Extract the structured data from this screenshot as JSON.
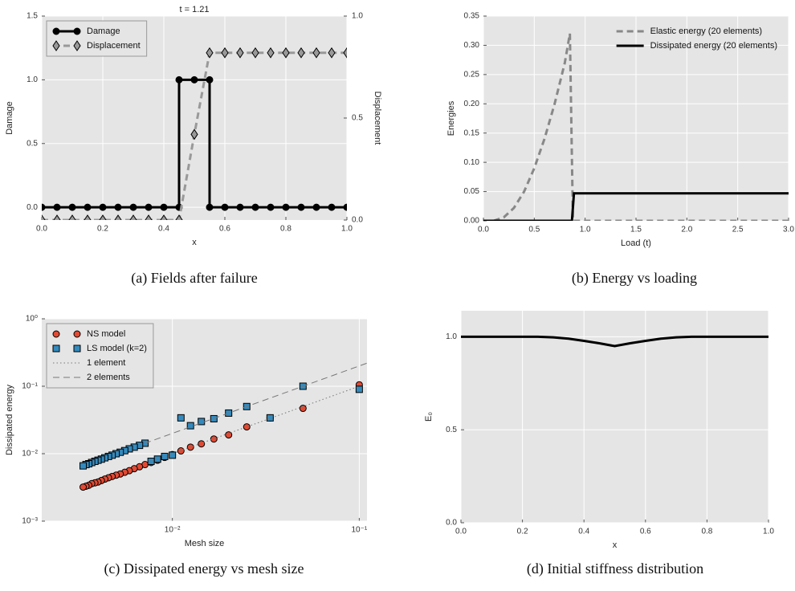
{
  "chart_data": [
    {
      "type": "line",
      "title": "t = 1.21",
      "caption": "(a) Fields after failure",
      "xlabel": "x",
      "ylabel": "Damage",
      "y2label": "Displacement",
      "xlim": [
        0,
        1
      ],
      "ylim": [
        -0.1,
        1.5
      ],
      "y2lim": [
        0,
        1
      ],
      "grid": true,
      "legend": "upper left",
      "legend_frame": true,
      "xticks": [
        {
          "value": 0,
          "label": "0.0"
        },
        {
          "value": 0.2,
          "label": "0.2"
        },
        {
          "value": 0.4,
          "label": "0.4"
        },
        {
          "value": 0.6,
          "label": "0.6"
        },
        {
          "value": 0.8,
          "label": "0.8"
        },
        {
          "value": 1,
          "label": "1.0"
        }
      ],
      "yticks": [
        {
          "value": 0,
          "label": "0.0"
        },
        {
          "value": 0.5,
          "label": "0.5"
        },
        {
          "value": 1,
          "label": "1.0"
        },
        {
          "value": 1.5,
          "label": "1.5"
        }
      ],
      "y2ticks": [
        {
          "value": 0,
          "label": "0.0"
        },
        {
          "value": 0.5,
          "label": "0.5"
        },
        {
          "value": 1,
          "label": "1.0"
        }
      ],
      "series": [
        {
          "name": "Damage",
          "color": "#000000",
          "linestyle": "solid",
          "linewidth": 3,
          "marker": "o",
          "x": [
            0,
            0.05,
            0.1,
            0.15,
            0.2,
            0.25,
            0.3,
            0.35,
            0.4,
            0.45,
            0.45,
            0.5,
            0.55,
            0.55,
            0.6,
            0.65,
            0.7,
            0.75,
            0.8,
            0.85,
            0.9,
            0.95,
            1.0
          ],
          "values": [
            0,
            0,
            0,
            0,
            0,
            0,
            0,
            0,
            0,
            0,
            1,
            1,
            1,
            0,
            0,
            0,
            0,
            0,
            0,
            0,
            0,
            0,
            0
          ]
        },
        {
          "name": "Displacement",
          "color": "#999999",
          "linestyle": "dashed",
          "linewidth": 3,
          "marker": "d",
          "axis": "y2",
          "x": [
            0,
            0.05,
            0.1,
            0.15,
            0.2,
            0.25,
            0.3,
            0.35,
            0.4,
            0.45,
            0.5,
            0.55,
            0.6,
            0.65,
            0.7,
            0.75,
            0.8,
            0.85,
            0.9,
            0.95,
            1.0
          ],
          "values": [
            0,
            0,
            0,
            0,
            0,
            0,
            0,
            0,
            0,
            0,
            0.42,
            0.82,
            0.82,
            0.82,
            0.82,
            0.82,
            0.82,
            0.82,
            0.82,
            0.82,
            0.82
          ]
        }
      ]
    },
    {
      "type": "line",
      "caption": "(b) Energy vs loading",
      "xlabel": "Load (t)",
      "ylabel": "Energies",
      "xlim": [
        0,
        3
      ],
      "ylim": [
        0,
        0.35
      ],
      "grid": true,
      "legend": "upper right",
      "legend_frame": false,
      "xticks": [
        {
          "value": 0,
          "label": "0.0"
        },
        {
          "value": 0.5,
          "label": "0.5"
        },
        {
          "value": 1,
          "label": "1.0"
        },
        {
          "value": 1.5,
          "label": "1.5"
        },
        {
          "value": 2,
          "label": "2.0"
        },
        {
          "value": 2.5,
          "label": "2.5"
        },
        {
          "value": 3,
          "label": "3.0"
        }
      ],
      "yticks": [
        {
          "value": 0,
          "label": "0.00"
        },
        {
          "value": 0.05,
          "label": "0.05"
        },
        {
          "value": 0.1,
          "label": "0.10"
        },
        {
          "value": 0.15,
          "label": "0.15"
        },
        {
          "value": 0.2,
          "label": "0.20"
        },
        {
          "value": 0.25,
          "label": "0.25"
        },
        {
          "value": 0.3,
          "label": "0.30"
        },
        {
          "value": 0.35,
          "label": "0.35"
        }
      ],
      "series": [
        {
          "name": "Elastic energy (20 elements)",
          "color": "#888888",
          "linestyle": "dashed",
          "linewidth": 3,
          "x": [
            0.1,
            0.2,
            0.3,
            0.4,
            0.5,
            0.6,
            0.7,
            0.8,
            0.85,
            0.88,
            3.0
          ],
          "values": [
            0,
            0.006,
            0.022,
            0.05,
            0.09,
            0.14,
            0.2,
            0.27,
            0.32,
            0,
            0
          ]
        },
        {
          "name": "Dissipated energy (20 elements)",
          "color": "#000000",
          "linestyle": "solid",
          "linewidth": 3,
          "x": [
            0,
            0.87,
            0.89,
            3.0
          ],
          "values": [
            0,
            0,
            0.047,
            0.047
          ]
        }
      ]
    },
    {
      "type": "scatter",
      "caption": "(c) Dissipated energy vs mesh size",
      "xlabel": "Mesh size",
      "ylabel": "Dissipated energy",
      "xscale": "log",
      "yscale": "log",
      "xlim": [
        0.002,
        0.11
      ],
      "ylim": [
        0.001,
        1
      ],
      "grid": true,
      "legend": "upper left",
      "legend_frame": true,
      "xticks": [
        {
          "value": 0.01,
          "label": "10⁻²"
        },
        {
          "value": 0.1,
          "label": "10⁻¹"
        }
      ],
      "yticks": [
        {
          "value": 0.001,
          "label": "10⁻³"
        },
        {
          "value": 0.01,
          "label": "10⁻²"
        },
        {
          "value": 0.1,
          "label": "10⁻¹"
        },
        {
          "value": 1,
          "label": "10⁰"
        }
      ],
      "series": [
        {
          "name": "NS model",
          "color": "#e24a33",
          "linestyle": "none",
          "marker": "o",
          "x": [
            0.1,
            0.05,
            0.03333,
            0.025,
            0.02,
            0.01667,
            0.01429,
            0.0125,
            0.01111,
            0.01,
            0.00909,
            0.00833,
            0.00769,
            0.00714,
            0.00667,
            0.00625,
            0.00588,
            0.00556,
            0.00526,
            0.005,
            0.00476,
            0.00455,
            0.00435,
            0.00417,
            0.004,
            0.00385,
            0.0037,
            0.00357,
            0.00345,
            0.00333
          ],
          "values": [
            0.105,
            0.047,
            0.034,
            0.025,
            0.019,
            0.0165,
            0.014,
            0.0125,
            0.011,
            0.0097,
            0.0088,
            0.008,
            0.0074,
            0.0069,
            0.0064,
            0.006,
            0.0056,
            0.0053,
            0.005,
            0.0048,
            0.0046,
            0.0044,
            0.0042,
            0.004,
            0.0038,
            0.0037,
            0.0036,
            0.0034,
            0.0033,
            0.0032
          ]
        },
        {
          "name": "LS model (k=2)",
          "color": "#348abd",
          "linestyle": "none",
          "marker": "s",
          "x": [
            0.1,
            0.05,
            0.03333,
            0.025,
            0.02,
            0.01667,
            0.01429,
            0.0125,
            0.01111,
            0.01,
            0.00909,
            0.00833,
            0.00769,
            0.00714,
            0.00667,
            0.00625,
            0.00588,
            0.00556,
            0.00526,
            0.005,
            0.00476,
            0.00455,
            0.00435,
            0.00417,
            0.004,
            0.00385,
            0.0037,
            0.00357,
            0.00345,
            0.00333
          ],
          "values": [
            0.09,
            0.1,
            0.034,
            0.05,
            0.04,
            0.033,
            0.03,
            0.026,
            0.034,
            0.0095,
            0.0091,
            0.0083,
            0.0077,
            0.0143,
            0.0133,
            0.0125,
            0.0118,
            0.0111,
            0.0105,
            0.01,
            0.0095,
            0.0091,
            0.0087,
            0.0083,
            0.008,
            0.0077,
            0.0074,
            0.0071,
            0.0069,
            0.0066
          ]
        },
        {
          "name": "1 element",
          "color": "#777777",
          "linestyle": "dotted",
          "linewidth": 1,
          "x": [
            0.0075,
            0.1
          ],
          "values": [
            0.0075,
            0.1
          ]
        },
        {
          "name": "2 elements",
          "color": "#777777",
          "linestyle": "dashed",
          "linewidth": 1,
          "x": [
            0.0071,
            0.11
          ],
          "values": [
            0.0142,
            0.22
          ]
        }
      ]
    },
    {
      "type": "line",
      "caption": "(d) Initial stiffness distribution",
      "xlabel": "x",
      "ylabel": "E₀",
      "xlim": [
        0,
        1
      ],
      "ylim": [
        0,
        1.14
      ],
      "grid": true,
      "xticks": [
        {
          "value": 0,
          "label": "0.0"
        },
        {
          "value": 0.2,
          "label": "0.2"
        },
        {
          "value": 0.4,
          "label": "0.4"
        },
        {
          "value": 0.6,
          "label": "0.6"
        },
        {
          "value": 0.8,
          "label": "0.8"
        },
        {
          "value": 1,
          "label": "1.0"
        }
      ],
      "yticks": [
        {
          "value": 0,
          "label": "0.0"
        },
        {
          "value": 0.5,
          "label": "0.5"
        },
        {
          "value": 1,
          "label": "1.0"
        }
      ],
      "series": [
        {
          "color": "#000000",
          "linestyle": "solid",
          "linewidth": 3,
          "x": [
            0,
            0.25,
            0.3,
            0.35,
            0.4,
            0.45,
            0.5,
            0.55,
            0.6,
            0.65,
            0.7,
            0.75,
            1
          ],
          "values": [
            1,
            1,
            0.997,
            0.99,
            0.978,
            0.965,
            0.95,
            0.965,
            0.978,
            0.99,
            0.997,
            1,
            1
          ]
        }
      ]
    }
  ]
}
